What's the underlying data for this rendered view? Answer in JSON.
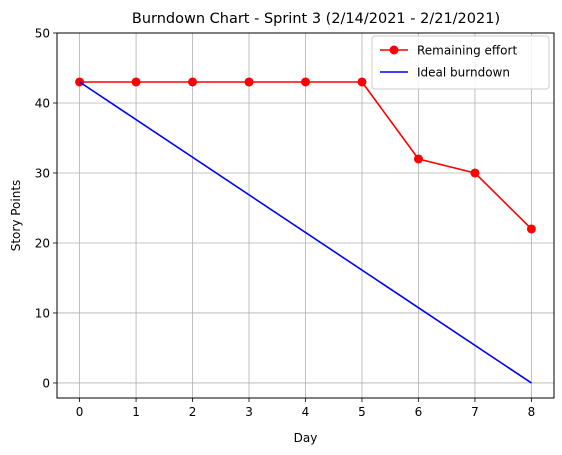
{
  "chart_data": {
    "type": "line",
    "title": "Burndown Chart - Sprint 3 (2/14/2021 - 2/21/2021)",
    "xlabel": "Day",
    "ylabel": "Story Points",
    "x": [
      0,
      1,
      2,
      3,
      4,
      5,
      6,
      7,
      8
    ],
    "xlim": [
      -0.4,
      8.4
    ],
    "ylim": [
      -2.15,
      50
    ],
    "xticks": [
      0,
      1,
      2,
      3,
      4,
      5,
      6,
      7,
      8
    ],
    "yticks": [
      0,
      10,
      20,
      30,
      40,
      50
    ],
    "grid": true,
    "legend_position": "top-right",
    "series": [
      {
        "name": "Remaining effort",
        "color": "#ff0000",
        "marker": "circle",
        "x": [
          0,
          1,
          2,
          3,
          4,
          5,
          6,
          7,
          8
        ],
        "values": [
          43,
          43,
          43,
          43,
          43,
          43,
          32,
          30,
          22
        ]
      },
      {
        "name": "Ideal burndown",
        "color": "#0000ff",
        "marker": "none",
        "x": [
          0,
          8
        ],
        "values": [
          43,
          0
        ]
      }
    ]
  }
}
